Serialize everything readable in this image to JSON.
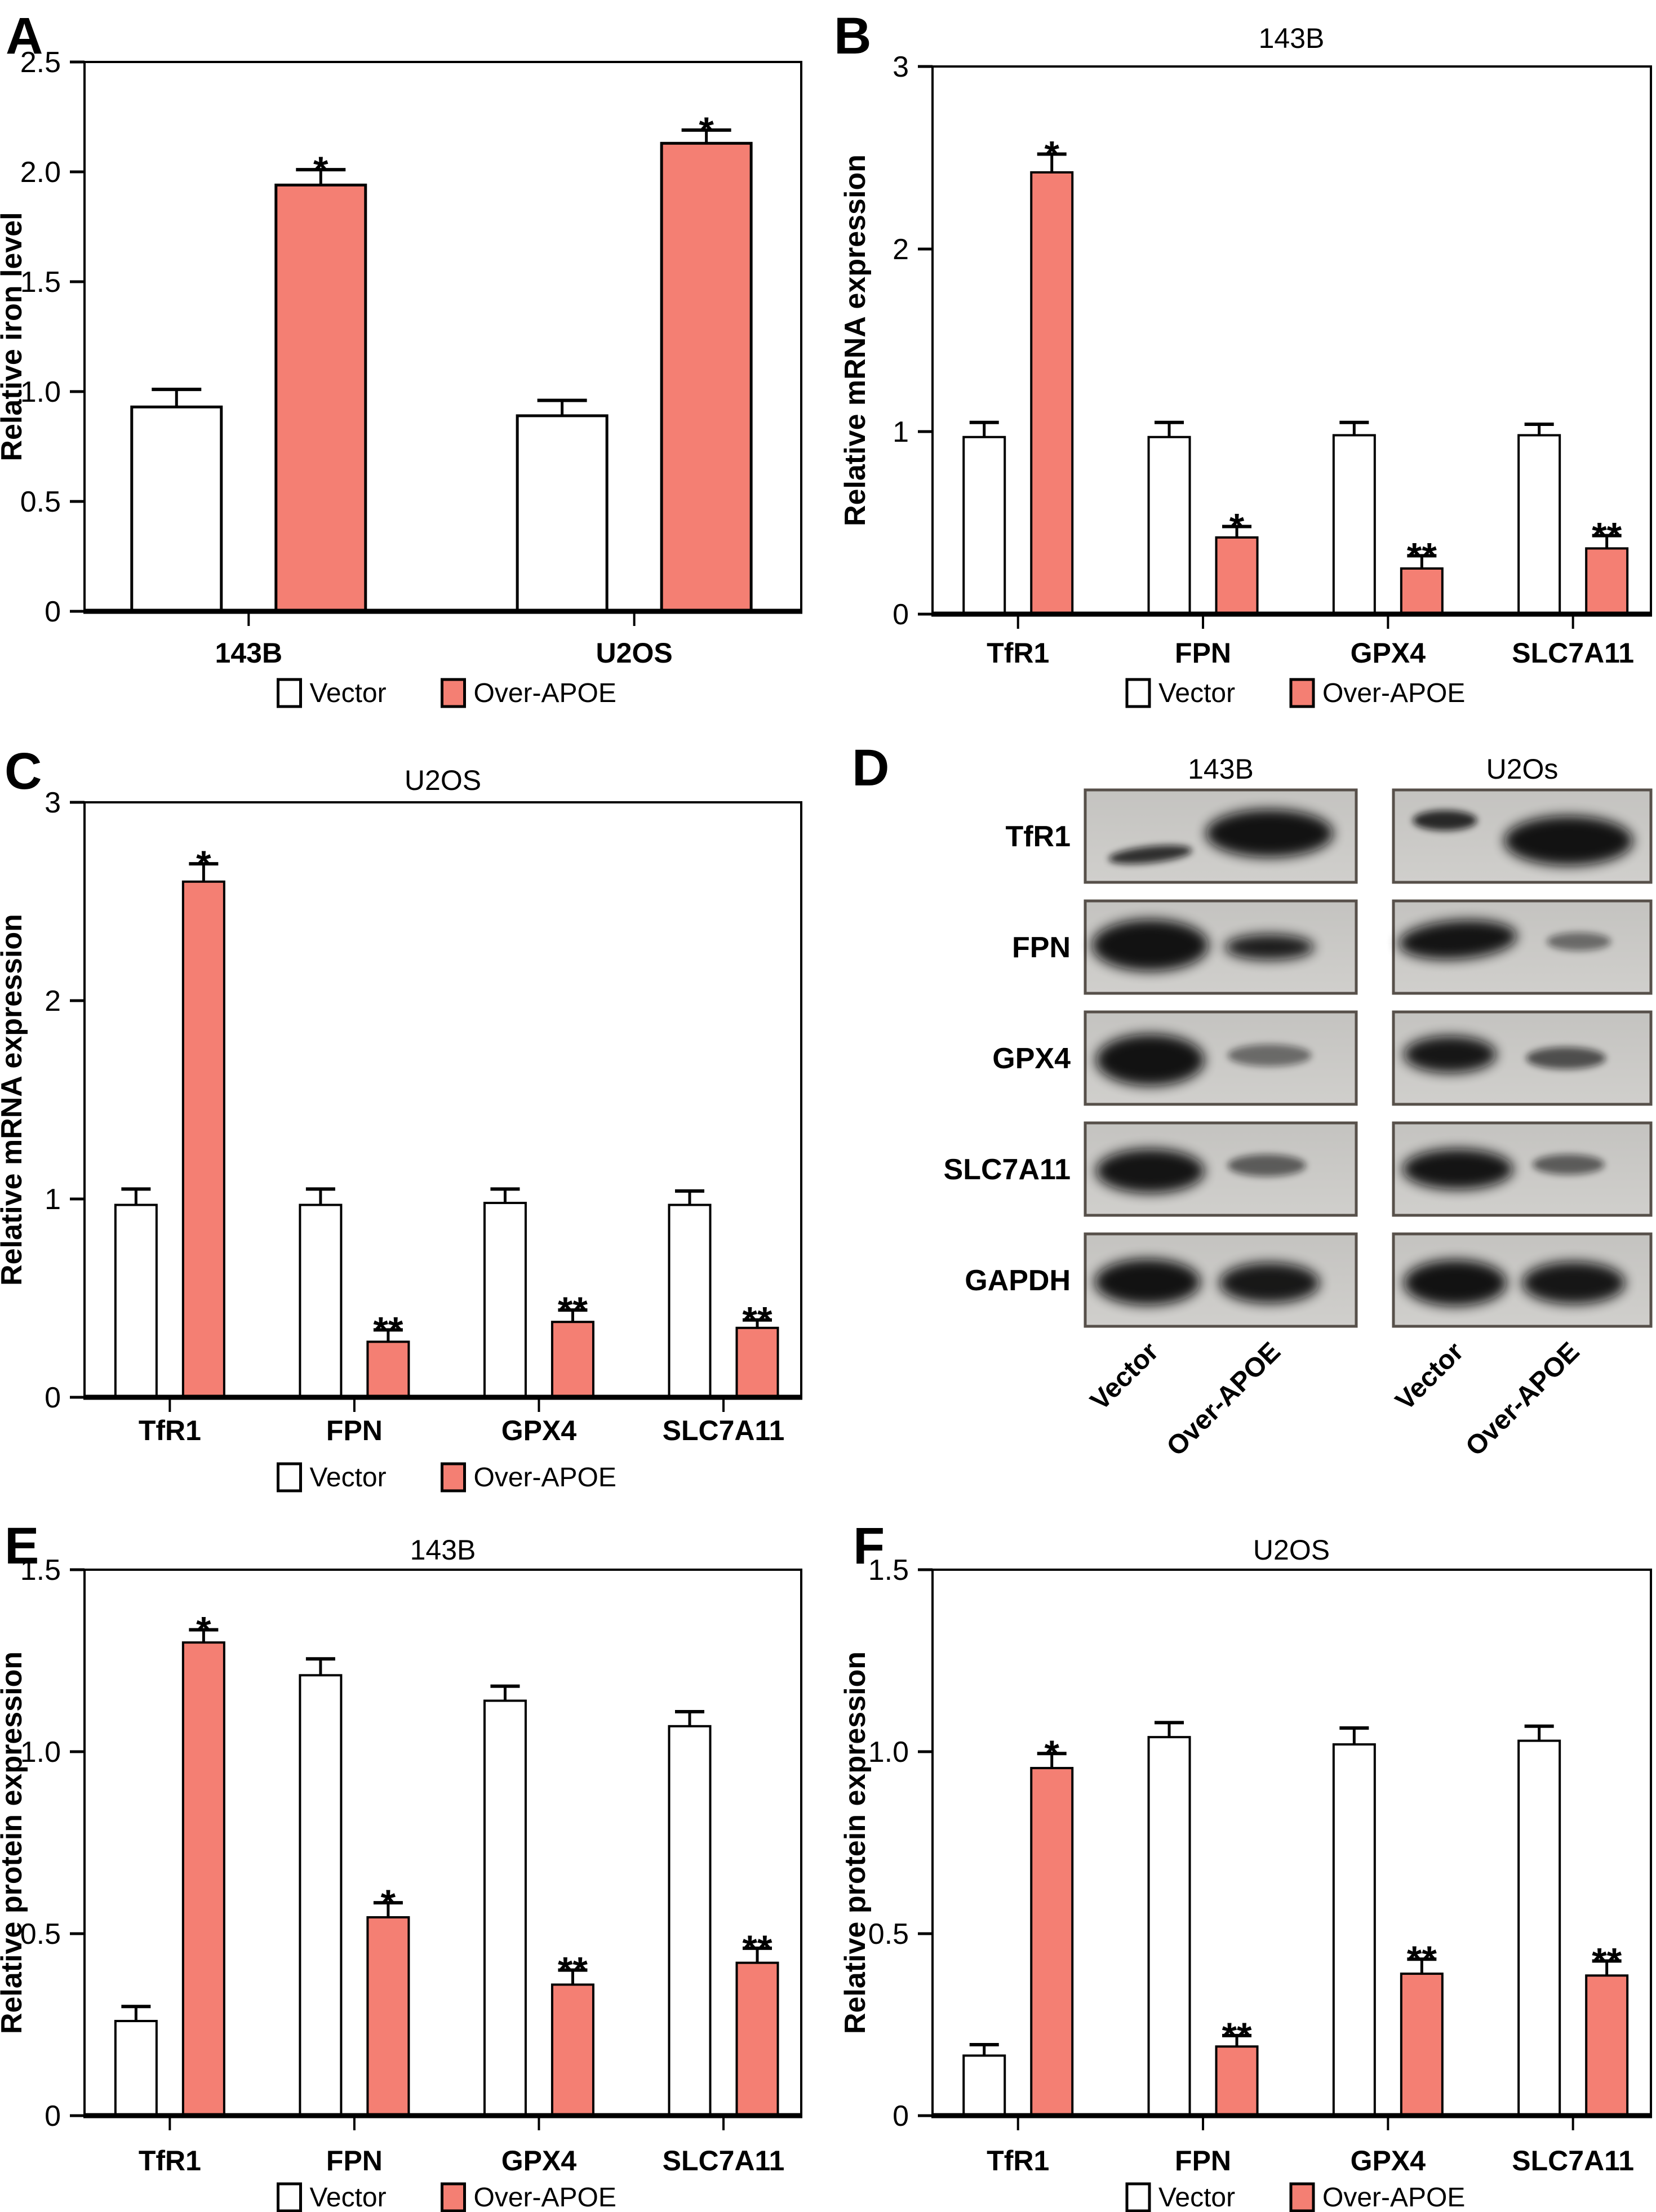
{
  "styles": {
    "accent": "#f47f73",
    "vector_fill": "#ffffff",
    "outline": "#000000",
    "blot_bg_dark": "#c4c3c0",
    "blot_bg_light": "#d0cfcc",
    "blot_border": "#57504a",
    "band_color": "#0a0a0a"
  },
  "chart_data": [
    {
      "panel": "A",
      "type": "bar",
      "title": "",
      "ylabel": "Relative iron level",
      "ylim": [
        0,
        2.5
      ],
      "grid": false,
      "yticks": [
        {
          "value": 0,
          "label": "0"
        },
        {
          "value": 0.5,
          "label": "0.5"
        },
        {
          "value": 1,
          "label": "1.0"
        },
        {
          "value": 1.5,
          "label": "1.5"
        },
        {
          "value": 2,
          "label": "2.0"
        },
        {
          "value": 2.5,
          "label": "2.5"
        }
      ],
      "categories": [
        "143B",
        "U2OS"
      ],
      "series": [
        {
          "name": "Vector",
          "values": [
            0.93,
            0.89
          ],
          "errors": [
            0.08,
            0.07
          ],
          "sig": [
            "",
            ""
          ]
        },
        {
          "name": "Over-APOE",
          "values": [
            1.94,
            2.13
          ],
          "errors": [
            0.07,
            0.06
          ],
          "sig": [
            "*",
            "*"
          ]
        }
      ],
      "legend": [
        "Vector",
        "Over-APOE"
      ],
      "legend_position": "bottom"
    },
    {
      "panel": "B",
      "type": "bar",
      "title": "143B",
      "ylabel": "Relative mRNA expression",
      "ylim": [
        0,
        3
      ],
      "grid": false,
      "yticks": [
        {
          "value": 0,
          "label": "0"
        },
        {
          "value": 1,
          "label": "1"
        },
        {
          "value": 2,
          "label": "2"
        },
        {
          "value": 3,
          "label": "3"
        }
      ],
      "categories": [
        "TfR1",
        "FPN",
        "GPX4",
        "SLC7A11"
      ],
      "series": [
        {
          "name": "Vector",
          "values": [
            0.97,
            0.97,
            0.98,
            0.98
          ],
          "errors": [
            0.08,
            0.08,
            0.07,
            0.06
          ],
          "sig": [
            "",
            "",
            "",
            ""
          ]
        },
        {
          "name": "Over-APOE",
          "values": [
            2.42,
            0.42,
            0.25,
            0.36
          ],
          "errors": [
            0.1,
            0.06,
            0.07,
            0.07
          ],
          "sig": [
            "*",
            "*",
            "**",
            "**"
          ]
        }
      ],
      "legend": [
        "Vector",
        "Over-APOE"
      ],
      "legend_position": "bottom"
    },
    {
      "panel": "C",
      "type": "bar",
      "title": "U2OS",
      "ylabel": "Relative mRNA expression",
      "ylim": [
        0,
        3
      ],
      "grid": false,
      "yticks": [
        {
          "value": 0,
          "label": "0"
        },
        {
          "value": 1,
          "label": "1"
        },
        {
          "value": 2,
          "label": "2"
        },
        {
          "value": 3,
          "label": "3"
        }
      ],
      "categories": [
        "TfR1",
        "FPN",
        "GPX4",
        "SLC7A11"
      ],
      "series": [
        {
          "name": "Vector",
          "values": [
            0.97,
            0.97,
            0.98,
            0.97
          ],
          "errors": [
            0.08,
            0.08,
            0.07,
            0.07
          ],
          "sig": [
            "",
            "",
            "",
            ""
          ]
        },
        {
          "name": "Over-APOE",
          "values": [
            2.6,
            0.28,
            0.38,
            0.35
          ],
          "errors": [
            0.09,
            0.06,
            0.06,
            0.04
          ],
          "sig": [
            "*",
            "**",
            "**",
            "**"
          ]
        }
      ],
      "legend": [
        "Vector",
        "Over-APOE"
      ],
      "legend_position": "bottom"
    },
    {
      "panel": "E",
      "type": "bar",
      "title": "143B",
      "ylabel": "Relative protein expression",
      "ylim": [
        0,
        1.5
      ],
      "grid": false,
      "yticks": [
        {
          "value": 0,
          "label": "0"
        },
        {
          "value": 0.5,
          "label": "0.5"
        },
        {
          "value": 1,
          "label": "1.0"
        },
        {
          "value": 1.5,
          "label": "1.5"
        }
      ],
      "categories": [
        "TfR1",
        "FPN",
        "GPX4",
        "SLC7A11"
      ],
      "series": [
        {
          "name": "Vector",
          "values": [
            0.26,
            1.21,
            1.14,
            1.07
          ],
          "errors": [
            0.04,
            0.045,
            0.04,
            0.04
          ],
          "sig": [
            "",
            "",
            "",
            ""
          ]
        },
        {
          "name": "Over-APOE",
          "values": [
            1.3,
            0.545,
            0.36,
            0.42
          ],
          "errors": [
            0.035,
            0.04,
            0.04,
            0.04
          ],
          "sig": [
            "*",
            "*",
            "**",
            "**"
          ]
        }
      ],
      "legend": [
        "Vector",
        "Over-APOE"
      ],
      "legend_position": "bottom"
    },
    {
      "panel": "F",
      "type": "bar",
      "title": "U2OS",
      "ylabel": "Relative protein expression",
      "ylim": [
        0,
        1.5
      ],
      "grid": false,
      "yticks": [
        {
          "value": 0,
          "label": "0"
        },
        {
          "value": 0.5,
          "label": "0.5"
        },
        {
          "value": 1,
          "label": "1.0"
        },
        {
          "value": 1.5,
          "label": "1.5"
        }
      ],
      "categories": [
        "TfR1",
        "FPN",
        "GPX4",
        "SLC7A11"
      ],
      "series": [
        {
          "name": "Vector",
          "values": [
            0.165,
            1.04,
            1.02,
            1.03
          ],
          "errors": [
            0.03,
            0.04,
            0.045,
            0.04
          ],
          "sig": [
            "",
            "",
            "",
            ""
          ]
        },
        {
          "name": "Over-APOE",
          "values": [
            0.955,
            0.19,
            0.39,
            0.385
          ],
          "errors": [
            0.04,
            0.03,
            0.04,
            0.04
          ],
          "sig": [
            "*",
            "**",
            "**",
            "**"
          ]
        }
      ],
      "legend": [
        "Vector",
        "Over-APOE"
      ],
      "legend_position": "bottom"
    }
  ],
  "blot_panel": {
    "panel": "D",
    "col_titles": [
      "143B",
      "U2Os"
    ],
    "lane_labels": [
      "Vector",
      "Over-APOE",
      "Vector",
      "Over-APOE"
    ],
    "rows": [
      {
        "label": "TfR1",
        "cols": [
          [
            [
              0.24,
              0.7,
              0.155,
              0.09,
              0.82,
              -6
            ],
            [
              0.68,
              0.47,
              0.235,
              0.26,
              0.97,
              0
            ]
          ],
          [
            [
              0.2,
              0.33,
              0.125,
              0.11,
              0.85,
              0
            ],
            [
              0.68,
              0.55,
              0.25,
              0.27,
              0.97,
              0
            ]
          ]
        ]
      },
      {
        "label": "FPN",
        "cols": [
          [
            [
              0.24,
              0.48,
              0.215,
              0.28,
              0.97,
              0
            ],
            [
              0.68,
              0.5,
              0.165,
              0.14,
              0.92,
              0
            ]
          ],
          [
            [
              0.25,
              0.42,
              0.23,
              0.21,
              0.96,
              -4
            ],
            [
              0.72,
              0.44,
              0.125,
              0.1,
              0.5,
              0
            ]
          ]
        ]
      },
      {
        "label": "GPX4",
        "cols": [
          [
            [
              0.24,
              0.52,
              0.2,
              0.28,
              0.97,
              0
            ],
            [
              0.68,
              0.47,
              0.155,
              0.12,
              0.5,
              0
            ]
          ],
          [
            [
              0.22,
              0.46,
              0.18,
              0.2,
              0.95,
              0
            ],
            [
              0.67,
              0.5,
              0.155,
              0.12,
              0.65,
              0
            ]
          ]
        ]
      },
      {
        "label": "SLC7A11",
        "cols": [
          [
            [
              0.24,
              0.52,
              0.2,
              0.24,
              0.96,
              0
            ],
            [
              0.67,
              0.46,
              0.145,
              0.12,
              0.58,
              0
            ]
          ],
          [
            [
              0.25,
              0.5,
              0.215,
              0.22,
              0.96,
              0
            ],
            [
              0.68,
              0.45,
              0.14,
              0.11,
              0.58,
              0
            ]
          ]
        ]
      },
      {
        "label": "GAPDH",
        "cols": [
          [
            [
              0.23,
              0.52,
              0.195,
              0.25,
              0.97,
              0
            ],
            [
              0.68,
              0.53,
              0.185,
              0.22,
              0.94,
              0
            ]
          ],
          [
            [
              0.24,
              0.53,
              0.2,
              0.25,
              0.97,
              0
            ],
            [
              0.7,
              0.53,
              0.2,
              0.23,
              0.95,
              0
            ]
          ]
        ]
      }
    ]
  }
}
